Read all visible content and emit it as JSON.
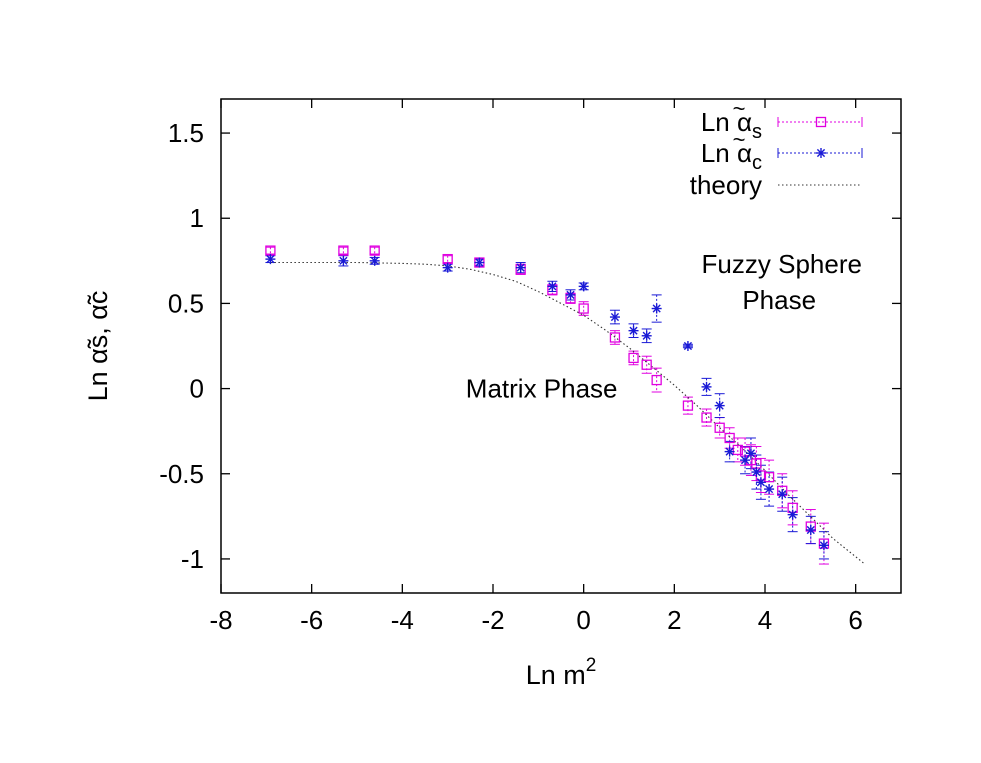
{
  "chart_data": {
    "type": "scatter",
    "xlabel": "Ln m",
    "xlabel_sup": "2",
    "ylabel": "Ln α̃s, α̃c",
    "xlim": [
      -8,
      7
    ],
    "ylim": [
      -1.2,
      1.7
    ],
    "xticks": [
      -8,
      -6,
      -4,
      -2,
      0,
      2,
      4,
      6
    ],
    "yticks": [
      -1,
      -0.5,
      0,
      0.5,
      1,
      1.5
    ],
    "grid": false,
    "legend_position": "top-right",
    "legend": [
      {
        "label": "Ln α̃s",
        "base": "Ln α",
        "sub": "s",
        "tilde": "~",
        "style": "square"
      },
      {
        "label": "Ln α̃c",
        "base": "Ln α",
        "sub": "c",
        "tilde": "~",
        "style": "star"
      },
      {
        "label": "theory",
        "style": "dotted-line"
      }
    ],
    "annotations": [
      {
        "text": "Matrix Phase",
        "x": -2.6,
        "y": 0.0
      },
      {
        "text": "Fuzzy Sphere",
        "x": 2.6,
        "y": 0.73
      },
      {
        "text": "Phase",
        "x": 3.5,
        "y": 0.52
      }
    ],
    "series": [
      {
        "key": "alpha_s",
        "color": "#e000e0",
        "marker": "square",
        "points": [
          {
            "x": -6.91,
            "y": 0.81,
            "err": 0.02
          },
          {
            "x": -5.3,
            "y": 0.81,
            "err": 0.02
          },
          {
            "x": -4.61,
            "y": 0.81,
            "err": 0.02
          },
          {
            "x": -3.0,
            "y": 0.76,
            "err": 0.02
          },
          {
            "x": -2.3,
            "y": 0.74,
            "err": 0.02
          },
          {
            "x": -1.39,
            "y": 0.7,
            "err": 0.03
          },
          {
            "x": -0.69,
            "y": 0.58,
            "err": 0.03
          },
          {
            "x": -0.29,
            "y": 0.53,
            "err": 0.03
          },
          {
            "x": 0.0,
            "y": 0.47,
            "err": 0.04
          },
          {
            "x": 0.69,
            "y": 0.3,
            "err": 0.04
          },
          {
            "x": 1.1,
            "y": 0.18,
            "err": 0.04
          },
          {
            "x": 1.39,
            "y": 0.14,
            "err": 0.05
          },
          {
            "x": 1.61,
            "y": 0.05,
            "err": 0.07
          },
          {
            "x": 2.3,
            "y": -0.1,
            "err": 0.05
          },
          {
            "x": 2.71,
            "y": -0.17,
            "err": 0.05
          },
          {
            "x": 3.0,
            "y": -0.23,
            "err": 0.06
          },
          {
            "x": 3.22,
            "y": -0.29,
            "err": 0.06
          },
          {
            "x": 3.4,
            "y": -0.36,
            "err": 0.07
          },
          {
            "x": 3.56,
            "y": -0.37,
            "err": 0.08
          },
          {
            "x": 3.69,
            "y": -0.42,
            "err": 0.09
          },
          {
            "x": 3.81,
            "y": -0.44,
            "err": 0.1
          },
          {
            "x": 3.91,
            "y": -0.51,
            "err": 0.1
          },
          {
            "x": 4.09,
            "y": -0.52,
            "err": 0.1
          },
          {
            "x": 4.38,
            "y": -0.6,
            "err": 0.1
          },
          {
            "x": 4.61,
            "y": -0.7,
            "err": 0.1
          },
          {
            "x": 5.01,
            "y": -0.81,
            "err": 0.1
          },
          {
            "x": 5.3,
            "y": -0.91,
            "err": 0.12
          }
        ]
      },
      {
        "key": "alpha_c",
        "color": "#1a1ad6",
        "marker": "star",
        "points": [
          {
            "x": -6.91,
            "y": 0.76,
            "err": 0.02
          },
          {
            "x": -5.3,
            "y": 0.75,
            "err": 0.03
          },
          {
            "x": -4.61,
            "y": 0.75,
            "err": 0.02
          },
          {
            "x": -3.0,
            "y": 0.71,
            "err": 0.02
          },
          {
            "x": -2.3,
            "y": 0.74,
            "err": 0.02
          },
          {
            "x": -1.39,
            "y": 0.71,
            "err": 0.03
          },
          {
            "x": -0.69,
            "y": 0.6,
            "err": 0.03
          },
          {
            "x": -0.29,
            "y": 0.55,
            "err": 0.03
          },
          {
            "x": 0.0,
            "y": 0.6,
            "err": 0.02
          },
          {
            "x": 0.69,
            "y": 0.42,
            "err": 0.04
          },
          {
            "x": 1.1,
            "y": 0.34,
            "err": 0.04
          },
          {
            "x": 1.39,
            "y": 0.31,
            "err": 0.04
          },
          {
            "x": 1.61,
            "y": 0.47,
            "err": 0.08
          },
          {
            "x": 2.3,
            "y": 0.25,
            "err": 0.01
          },
          {
            "x": 2.71,
            "y": 0.01,
            "err": 0.05
          },
          {
            "x": 3.0,
            "y": -0.1,
            "err": 0.07
          },
          {
            "x": 3.22,
            "y": -0.37,
            "err": 0.06
          },
          {
            "x": 3.56,
            "y": -0.42,
            "err": 0.08
          },
          {
            "x": 3.69,
            "y": -0.38,
            "err": 0.09
          },
          {
            "x": 3.81,
            "y": -0.49,
            "err": 0.1
          },
          {
            "x": 3.91,
            "y": -0.55,
            "err": 0.1
          },
          {
            "x": 4.09,
            "y": -0.59,
            "err": 0.1
          },
          {
            "x": 4.38,
            "y": -0.62,
            "err": 0.1
          },
          {
            "x": 4.61,
            "y": -0.74,
            "err": 0.1
          },
          {
            "x": 5.01,
            "y": -0.83,
            "err": 0.08
          },
          {
            "x": 5.3,
            "y": -0.92,
            "err": 0.08
          }
        ]
      },
      {
        "key": "theory",
        "color": "#333333",
        "marker": "dotted-line",
        "points": [
          {
            "x": -6.91,
            "y": 0.74
          },
          {
            "x": -6.0,
            "y": 0.74
          },
          {
            "x": -5.0,
            "y": 0.74
          },
          {
            "x": -4.0,
            "y": 0.735
          },
          {
            "x": -3.5,
            "y": 0.73
          },
          {
            "x": -3.0,
            "y": 0.72
          },
          {
            "x": -2.5,
            "y": 0.7
          },
          {
            "x": -2.0,
            "y": 0.67
          },
          {
            "x": -1.5,
            "y": 0.63
          },
          {
            "x": -1.0,
            "y": 0.57
          },
          {
            "x": -0.5,
            "y": 0.5
          },
          {
            "x": 0.0,
            "y": 0.43
          },
          {
            "x": 0.5,
            "y": 0.34
          },
          {
            "x": 1.0,
            "y": 0.24
          },
          {
            "x": 1.5,
            "y": 0.13
          },
          {
            "x": 2.0,
            "y": 0.02
          },
          {
            "x": 2.5,
            "y": -0.1
          },
          {
            "x": 3.0,
            "y": -0.23
          },
          {
            "x": 3.5,
            "y": -0.35
          },
          {
            "x": 4.0,
            "y": -0.48
          },
          {
            "x": 4.5,
            "y": -0.62
          },
          {
            "x": 5.0,
            "y": -0.75
          },
          {
            "x": 5.5,
            "y": -0.88
          },
          {
            "x": 6.2,
            "y": -1.03
          }
        ]
      }
    ]
  }
}
